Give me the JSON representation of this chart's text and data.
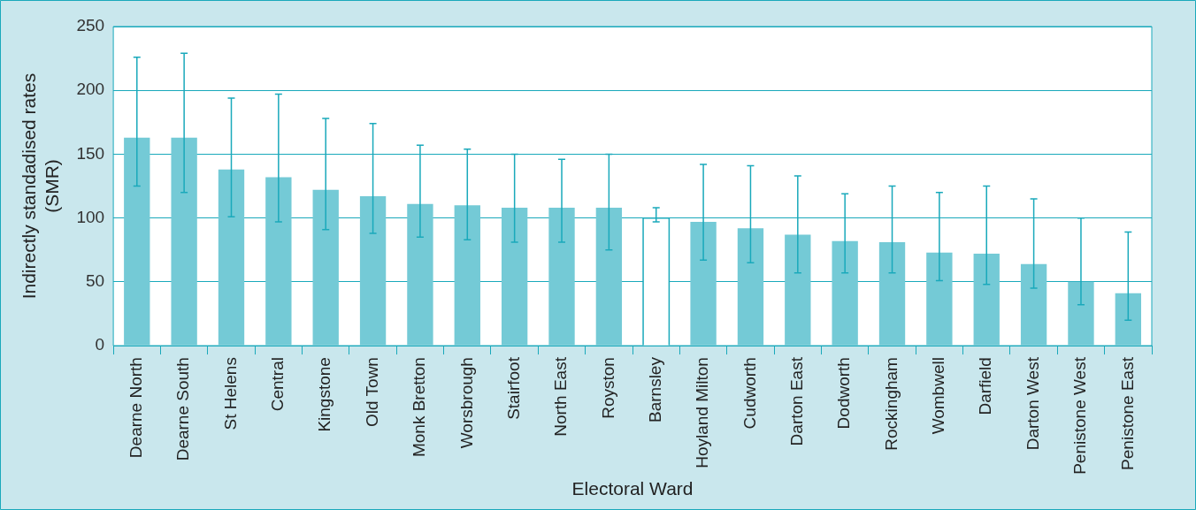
{
  "chart_data": {
    "type": "bar",
    "xlabel": "Electoral Ward",
    "ylabel": "Indirectly standadised rates\n(SMR)",
    "categories": [
      "Dearne North",
      "Dearne South",
      "St Helens",
      "Central",
      "Kingstone",
      "Old Town",
      "Monk Bretton",
      "Worsbrough",
      "Stairfoot",
      "North East",
      "Royston",
      "Barnsley",
      "Hoyland Milton",
      "Cudworth",
      "Darton East",
      "Dodworth",
      "Rockingham",
      "Wombwell",
      "Darfield",
      "Darton West",
      "Penistone West",
      "Penistone East"
    ],
    "values": [
      163,
      163,
      138,
      132,
      122,
      117,
      111,
      110,
      108,
      108,
      108,
      100,
      97,
      92,
      87,
      82,
      81,
      73,
      72,
      64,
      50,
      41
    ],
    "errors": [
      [
        125,
        226
      ],
      [
        120,
        229
      ],
      [
        101,
        194
      ],
      [
        97,
        197
      ],
      [
        91,
        178
      ],
      [
        88,
        174
      ],
      [
        85,
        157
      ],
      [
        83,
        154
      ],
      [
        81,
        150
      ],
      [
        81,
        146
      ],
      [
        75,
        150
      ],
      [
        97,
        108
      ],
      [
        67,
        142
      ],
      [
        65,
        141
      ],
      [
        57,
        133
      ],
      [
        57,
        119
      ],
      [
        57,
        125
      ],
      [
        51,
        120
      ],
      [
        48,
        125
      ],
      [
        45,
        115
      ],
      [
        32,
        100
      ],
      [
        20,
        89
      ]
    ],
    "colors": [
      "#74cad6",
      "#74cad6",
      "#74cad6",
      "#74cad6",
      "#74cad6",
      "#74cad6",
      "#74cad6",
      "#74cad6",
      "#74cad6",
      "#74cad6",
      "#74cad6",
      "#ffffff",
      "#74cad6",
      "#74cad6",
      "#74cad6",
      "#74cad6",
      "#74cad6",
      "#74cad6",
      "#74cad6",
      "#74cad6",
      "#74cad6",
      "#74cad6"
    ],
    "ylim": [
      0,
      250
    ],
    "yticks": [
      0,
      50,
      100,
      150,
      200,
      250
    ],
    "grid": "y",
    "legend": false
  }
}
